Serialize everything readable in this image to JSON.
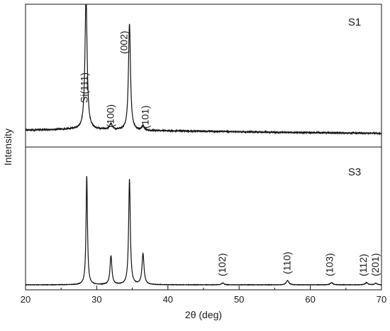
{
  "chart_data": {
    "type": "line",
    "xlabel": "2θ (deg)",
    "ylabel": "Intensity",
    "xlim": [
      20,
      70
    ],
    "xticks": [
      20,
      30,
      40,
      50,
      60,
      70
    ],
    "grid": false,
    "legend": "none",
    "line_color": "#111111",
    "panels": [
      {
        "label": "S1",
        "position": "top",
        "baseline": 0.03,
        "noise": 0.012,
        "background": [
          [
            20,
            0.035
          ],
          [
            28,
            0.045
          ],
          [
            36,
            0.03
          ],
          [
            45,
            0.025
          ],
          [
            55,
            0.015
          ],
          [
            70,
            0.005
          ]
        ],
        "peaks": [
          {
            "x": 28.5,
            "height": 1.25,
            "width": 0.18
          },
          {
            "x": 32.0,
            "height": 0.055,
            "width": 0.2
          },
          {
            "x": 34.6,
            "height": 1.0,
            "width": 0.17
          },
          {
            "x": 36.5,
            "height": 0.045,
            "width": 0.2
          }
        ],
        "annotations": [
          {
            "text": "Si(111)",
            "x": 28.3,
            "y": 0.32
          },
          {
            "text": "(002)",
            "x": 33.9,
            "y": 0.78
          },
          {
            "text": "(100)",
            "x": 32.0,
            "y": 0.09
          },
          {
            "text": "(101)",
            "x": 36.9,
            "y": 0.08
          }
        ]
      },
      {
        "label": "S3",
        "position": "bottom",
        "baseline": 0.02,
        "noise": 0.003,
        "background": [
          [
            20,
            0.0
          ],
          [
            70,
            0.0
          ]
        ],
        "peaks": [
          {
            "x": 28.6,
            "height": 1.02,
            "width": 0.12
          },
          {
            "x": 32.0,
            "height": 0.27,
            "width": 0.16
          },
          {
            "x": 34.6,
            "height": 0.99,
            "width": 0.14
          },
          {
            "x": 36.5,
            "height": 0.29,
            "width": 0.17
          },
          {
            "x": 47.7,
            "height": 0.017,
            "width": 0.2
          },
          {
            "x": 56.8,
            "height": 0.04,
            "width": 0.22
          },
          {
            "x": 63.0,
            "height": 0.02,
            "width": 0.22
          },
          {
            "x": 67.9,
            "height": 0.02,
            "width": 0.22
          },
          {
            "x": 69.2,
            "height": 0.015,
            "width": 0.2
          }
        ],
        "annotations": [
          {
            "text": "(102)",
            "x": 47.7,
            "y": 0.1
          },
          {
            "text": "(110)",
            "x": 56.8,
            "y": 0.12
          },
          {
            "text": "(103)",
            "x": 62.8,
            "y": 0.1
          },
          {
            "text": "(112)",
            "x": 67.5,
            "y": 0.1
          },
          {
            "text": "(201)",
            "x": 69.2,
            "y": 0.1
          }
        ]
      }
    ]
  }
}
